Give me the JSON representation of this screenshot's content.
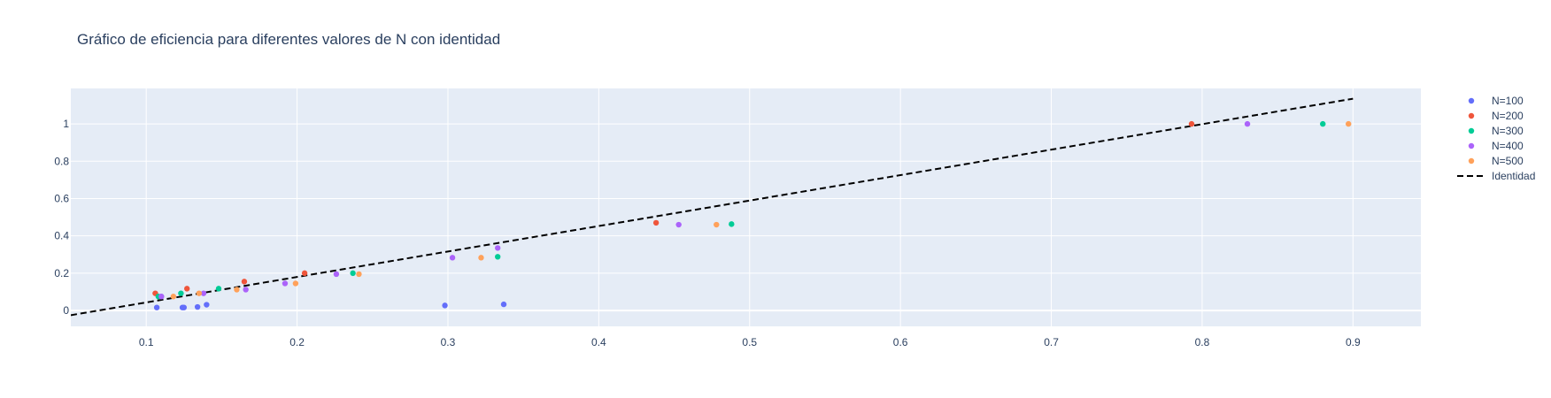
{
  "chart_data": {
    "type": "scatter",
    "title": "Gráfico de eficiencia para diferentes valores de N con identidad",
    "xlabel": "",
    "ylabel": "",
    "xlim": [
      0.05,
      0.945
    ],
    "ylim": [
      -0.085,
      1.19
    ],
    "x_ticks": [
      0.1,
      0.2,
      0.3,
      0.4,
      0.5,
      0.6,
      0.7,
      0.8,
      0.9
    ],
    "x_tick_labels": [
      "0.1",
      "0.2",
      "0.3",
      "0.4",
      "0.5",
      "0.6",
      "0.7",
      "0.8",
      "0.9"
    ],
    "y_ticks": [
      0,
      0.2,
      0.4,
      0.6,
      0.8,
      1
    ],
    "y_tick_labels": [
      "0",
      "0.2",
      "0.4",
      "0.6",
      "0.8",
      "1"
    ],
    "grid": true,
    "legend_position": "top-right",
    "background": "#e5ecf6",
    "series": [
      {
        "name": "N=100",
        "color": "#636efa",
        "mode": "markers",
        "points": [
          [
            0.107,
            0.016
          ],
          [
            0.124,
            0.016
          ],
          [
            0.125,
            0.016
          ],
          [
            0.134,
            0.019
          ],
          [
            0.14,
            0.031
          ],
          [
            0.298,
            0.027
          ],
          [
            0.337,
            0.033
          ],
          [
            0.11,
            0.075
          ]
        ]
      },
      {
        "name": "N=200",
        "color": "#ef553b",
        "mode": "markers",
        "points": [
          [
            0.106,
            0.092
          ],
          [
            0.127,
            0.117
          ],
          [
            0.165,
            0.155
          ],
          [
            0.205,
            0.2
          ],
          [
            0.438,
            0.47
          ],
          [
            0.793,
            1.0
          ]
        ]
      },
      {
        "name": "N=300",
        "color": "#00cc96",
        "mode": "markers",
        "points": [
          [
            0.108,
            0.075
          ],
          [
            0.123,
            0.092
          ],
          [
            0.148,
            0.117
          ],
          [
            0.237,
            0.2
          ],
          [
            0.333,
            0.288
          ],
          [
            0.488,
            0.463
          ],
          [
            0.88,
            1.0
          ]
        ]
      },
      {
        "name": "N=400",
        "color": "#ab63fa",
        "mode": "markers",
        "points": [
          [
            0.11,
            0.075
          ],
          [
            0.138,
            0.092
          ],
          [
            0.166,
            0.112
          ],
          [
            0.192,
            0.145
          ],
          [
            0.226,
            0.195
          ],
          [
            0.303,
            0.283
          ],
          [
            0.333,
            0.335
          ],
          [
            0.453,
            0.46
          ],
          [
            0.83,
            1.0
          ]
        ]
      },
      {
        "name": "N=500",
        "color": "#ffa15a",
        "mode": "markers",
        "points": [
          [
            0.118,
            0.075
          ],
          [
            0.135,
            0.092
          ],
          [
            0.16,
            0.112
          ],
          [
            0.199,
            0.145
          ],
          [
            0.241,
            0.195
          ],
          [
            0.322,
            0.283
          ],
          [
            0.478,
            0.46
          ],
          [
            0.897,
            1.0
          ]
        ]
      },
      {
        "name": "Identidad",
        "color": "#000000",
        "mode": "dashed-line",
        "points": [
          [
            0.05,
            -0.025
          ],
          [
            0.9,
            1.135
          ]
        ]
      }
    ]
  }
}
